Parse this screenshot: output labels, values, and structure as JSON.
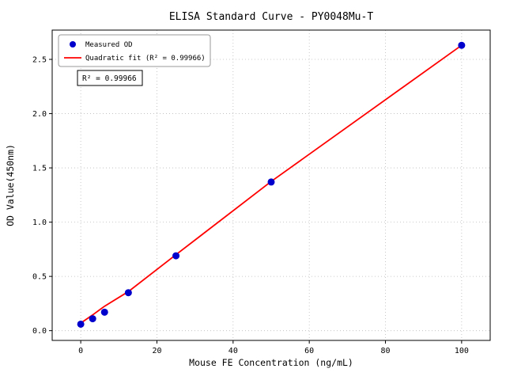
{
  "chart_data": {
    "type": "scatter",
    "title": "ELISA Standard Curve - PY0048Mu-T",
    "xlabel": "Mouse FE Concentration (ng/mL)",
    "ylabel": "OD Value(450nm)",
    "xlim": [
      -7.5,
      107.5
    ],
    "ylim": [
      -0.09,
      2.77
    ],
    "x_ticks": [
      0,
      20,
      40,
      60,
      80,
      100
    ],
    "x_tick_labels": [
      "0",
      "20",
      "40",
      "60",
      "80",
      "100"
    ],
    "y_ticks": [
      0.0,
      0.5,
      1.0,
      1.5,
      2.0,
      2.5
    ],
    "y_tick_labels": [
      "0.0",
      "0.5",
      "1.0",
      "1.5",
      "2.0",
      "2.5"
    ],
    "grid": true,
    "legend_position": "upper left",
    "annotation": "R² = 0.99966",
    "series": [
      {
        "name": "Measured OD",
        "type": "scatter",
        "color": "#0000cd",
        "x": [
          0,
          3.125,
          6.25,
          12.5,
          25,
          50,
          100
        ],
        "y": [
          0.06,
          0.11,
          0.17,
          0.35,
          0.69,
          1.37,
          2.63
        ]
      },
      {
        "name": "Quadratic fit (R² = 0.99966)",
        "type": "line",
        "color": "#ff0000",
        "x": [
          0,
          3.125,
          6.25,
          12.5,
          25,
          50,
          100
        ],
        "y": [
          0.07,
          0.145,
          0.225,
          0.36,
          0.7,
          1.375,
          2.63
        ]
      }
    ]
  }
}
